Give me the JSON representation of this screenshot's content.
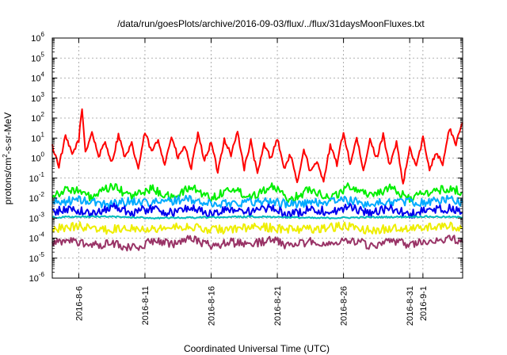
{
  "chart_data": {
    "type": "line",
    "title": "/data/run/goesPlots/archive/2016-09-03/flux/../flux/31daysMoonFluxes.txt",
    "xlabel": "Coordinated Universal Time (UTC)",
    "ylabel_parts": [
      "protons/cm",
      "2",
      "-s-sr-MeV"
    ],
    "yscale": "log",
    "ylim": [
      1e-06,
      1000000.0
    ],
    "xlim": [
      "2016-08-04T00:00",
      "2016-09-04T00:00"
    ],
    "grid": true,
    "legend": "none",
    "x_tick_labels": [
      "2016-8-6",
      "2016-8-11",
      "2016-8-16",
      "2016-8-21",
      "2016-8-26",
      "2016-8-31",
      "2016-9-1"
    ],
    "x_tick_dates": [
      "2016-08-06",
      "2016-08-11",
      "2016-08-16",
      "2016-08-21",
      "2016-08-26",
      "2016-08-31",
      "2016-09-01"
    ],
    "y_tick_labels": [
      {
        "base": "10",
        "exp": "6"
      },
      {
        "base": "10",
        "exp": "5"
      },
      {
        "base": "10",
        "exp": "4"
      },
      {
        "base": "10",
        "exp": "3"
      },
      {
        "base": "10",
        "exp": "2"
      },
      {
        "base": "10",
        "exp": "1"
      },
      {
        "base": "10",
        "exp": "0"
      },
      {
        "base": "10",
        "exp": "-1"
      },
      {
        "base": "10",
        "exp": "-2"
      },
      {
        "base": "10",
        "exp": "-3"
      },
      {
        "base": "10",
        "exp": "-4"
      },
      {
        "base": "10",
        "exp": "-5"
      },
      {
        "base": "10",
        "exp": "-6"
      }
    ],
    "y_tick_values": [
      1000000.0,
      100000.0,
      10000.0,
      1000.0,
      100.0,
      10.0,
      1,
      0.1,
      0.01,
      0.001,
      0.0001,
      1e-05,
      1e-06
    ],
    "series": [
      {
        "color": "#ff0000",
        "x": [
          "2016-08-04T00:00",
          "2016-08-04T12:00",
          "2016-08-05T00:00",
          "2016-08-05T12:00",
          "2016-08-06T00:00",
          "2016-08-06T06:00",
          "2016-08-06T12:00",
          "2016-08-07T00:00",
          "2016-08-07T12:00",
          "2016-08-08T00:00",
          "2016-08-08T12:00",
          "2016-08-09T00:00",
          "2016-08-09T12:00",
          "2016-08-10T00:00",
          "2016-08-10T12:00",
          "2016-08-11T00:00",
          "2016-08-11T12:00",
          "2016-08-12T00:00",
          "2016-08-12T12:00",
          "2016-08-13T00:00",
          "2016-08-13T12:00",
          "2016-08-14T00:00",
          "2016-08-14T12:00",
          "2016-08-15T00:00",
          "2016-08-15T12:00",
          "2016-08-16T00:00",
          "2016-08-16T12:00",
          "2016-08-17T00:00",
          "2016-08-17T12:00",
          "2016-08-18T00:00",
          "2016-08-18T12:00",
          "2016-08-19T00:00",
          "2016-08-19T12:00",
          "2016-08-20T00:00",
          "2016-08-20T12:00",
          "2016-08-21T00:00",
          "2016-08-21T12:00",
          "2016-08-22T00:00",
          "2016-08-22T12:00",
          "2016-08-23T00:00",
          "2016-08-23T12:00",
          "2016-08-24T00:00",
          "2016-08-24T12:00",
          "2016-08-25T00:00",
          "2016-08-25T12:00",
          "2016-08-26T00:00",
          "2016-08-26T12:00",
          "2016-08-27T00:00",
          "2016-08-27T12:00",
          "2016-08-28T00:00",
          "2016-08-28T12:00",
          "2016-08-29T00:00",
          "2016-08-29T12:00",
          "2016-08-30T00:00",
          "2016-08-30T12:00",
          "2016-08-31T00:00",
          "2016-08-31T12:00",
          "2016-09-01T00:00",
          "2016-09-01T12:00",
          "2016-09-02T00:00",
          "2016-09-02T12:00",
          "2016-09-03T00:00",
          "2016-09-03T12:00",
          "2016-09-04T00:00"
        ],
        "y": [
          4,
          0.4,
          12,
          1.5,
          8,
          300,
          2,
          20,
          1.2,
          6,
          0.6,
          15,
          1,
          5,
          0.3,
          20,
          2,
          8,
          0.5,
          12,
          1,
          4,
          0.3,
          15,
          0.8,
          6,
          0.2,
          9,
          1.5,
          20,
          0.3,
          7,
          0.15,
          5,
          1,
          10,
          0.3,
          1.5,
          0.05,
          3,
          0.2,
          0.6,
          0.08,
          4,
          0.5,
          20,
          0.5,
          10,
          0.2,
          8,
          1,
          15,
          0.4,
          6,
          0.05,
          3,
          0.4,
          10,
          0.3,
          2,
          0.5,
          30,
          5,
          60
        ]
      },
      {
        "color": "#00ee00",
        "x": [
          "2016-08-04T00:00",
          "2016-08-05T12:00",
          "2016-08-07T00:00",
          "2016-08-08T12:00",
          "2016-08-10T00:00",
          "2016-08-11T12:00",
          "2016-08-13T00:00",
          "2016-08-14T12:00",
          "2016-08-16T00:00",
          "2016-08-17T12:00",
          "2016-08-19T00:00",
          "2016-08-20T12:00",
          "2016-08-22T00:00",
          "2016-08-23T12:00",
          "2016-08-25T00:00",
          "2016-08-26T12:00",
          "2016-08-28T00:00",
          "2016-08-29T12:00",
          "2016-08-31T00:00",
          "2016-09-01T12:00",
          "2016-09-03T00:00",
          "2016-09-04T00:00"
        ],
        "y": [
          0.015,
          0.03,
          0.01,
          0.04,
          0.012,
          0.03,
          0.01,
          0.035,
          0.01,
          0.03,
          0.012,
          0.04,
          0.008,
          0.03,
          0.01,
          0.04,
          0.015,
          0.03,
          0.01,
          0.02,
          0.03,
          0.02
        ]
      },
      {
        "color": "#00aaff",
        "x": [
          "2016-08-04T00:00",
          "2016-08-06T00:00",
          "2016-08-08T00:00",
          "2016-08-10T00:00",
          "2016-08-12T00:00",
          "2016-08-14T00:00",
          "2016-08-16T00:00",
          "2016-08-18T00:00",
          "2016-08-20T00:00",
          "2016-08-22T00:00",
          "2016-08-24T00:00",
          "2016-08-26T00:00",
          "2016-08-28T00:00",
          "2016-08-30T00:00",
          "2016-09-01T00:00",
          "2016-09-03T00:00",
          "2016-09-04T00:00"
        ],
        "y": [
          0.006,
          0.008,
          0.005,
          0.007,
          0.006,
          0.009,
          0.005,
          0.006,
          0.007,
          0.005,
          0.006,
          0.008,
          0.005,
          0.007,
          0.006,
          0.009,
          0.006
        ]
      },
      {
        "color": "#0000ee",
        "x": [
          "2016-08-04T00:00",
          "2016-08-05T12:00",
          "2016-08-07T00:00",
          "2016-08-08T12:00",
          "2016-08-10T00:00",
          "2016-08-11T12:00",
          "2016-08-13T00:00",
          "2016-08-14T12:00",
          "2016-08-16T00:00",
          "2016-08-17T12:00",
          "2016-08-19T00:00",
          "2016-08-20T12:00",
          "2016-08-22T00:00",
          "2016-08-23T12:00",
          "2016-08-25T00:00",
          "2016-08-26T12:00",
          "2016-08-28T00:00",
          "2016-08-29T12:00",
          "2016-08-31T00:00",
          "2016-09-01T12:00",
          "2016-09-03T00:00",
          "2016-09-04T00:00"
        ],
        "y": [
          0.002,
          0.003,
          0.0015,
          0.004,
          0.002,
          0.003,
          0.0018,
          0.0035,
          0.0015,
          0.003,
          0.002,
          0.0032,
          0.0014,
          0.003,
          0.002,
          0.0035,
          0.0018,
          0.003,
          0.0015,
          0.0025,
          0.003,
          0.002
        ]
      },
      {
        "color": "#00bbbb",
        "x": [
          "2016-08-04T00:00",
          "2016-08-08T00:00",
          "2016-08-12T00:00",
          "2016-08-16T00:00",
          "2016-08-20T00:00",
          "2016-08-24T00:00",
          "2016-08-28T00:00",
          "2016-09-01T00:00",
          "2016-09-04T00:00"
        ],
        "y": [
          0.0011,
          0.0012,
          0.001,
          0.0011,
          0.0012,
          0.001,
          0.0011,
          0.0012,
          0.0011
        ]
      },
      {
        "color": "#eeee00",
        "x": [
          "2016-08-04T00:00",
          "2016-08-06T00:00",
          "2016-08-08T00:00",
          "2016-08-10T00:00",
          "2016-08-12T00:00",
          "2016-08-14T00:00",
          "2016-08-16T00:00",
          "2016-08-18T00:00",
          "2016-08-20T00:00",
          "2016-08-22T00:00",
          "2016-08-24T00:00",
          "2016-08-26T00:00",
          "2016-08-28T00:00",
          "2016-08-30T00:00",
          "2016-09-01T00:00",
          "2016-09-03T00:00",
          "2016-09-04T00:00"
        ],
        "y": [
          0.0003,
          0.0004,
          0.00025,
          0.00035,
          0.0003,
          0.0004,
          0.00025,
          0.0003,
          0.00035,
          0.00028,
          0.0003,
          0.0004,
          0.00025,
          0.0003,
          0.00035,
          0.0004,
          0.0003
        ]
      },
      {
        "color": "#993366",
        "x": [
          "2016-08-04T00:00",
          "2016-08-05T12:00",
          "2016-08-07T00:00",
          "2016-08-08T12:00",
          "2016-08-10T00:00",
          "2016-08-11T12:00",
          "2016-08-13T00:00",
          "2016-08-14T12:00",
          "2016-08-16T00:00",
          "2016-08-17T12:00",
          "2016-08-19T00:00",
          "2016-08-20T12:00",
          "2016-08-22T00:00",
          "2016-08-23T12:00",
          "2016-08-25T00:00",
          "2016-08-26T12:00",
          "2016-08-28T00:00",
          "2016-08-29T12:00",
          "2016-08-31T00:00",
          "2016-09-01T12:00",
          "2016-09-03T00:00",
          "2016-09-04T00:00"
        ],
        "y": [
          5e-05,
          8e-05,
          4e-05,
          6e-05,
          3e-05,
          7e-05,
          5e-05,
          9e-05,
          4e-05,
          6e-05,
          5e-05,
          8e-05,
          4e-05,
          7e-05,
          5e-05,
          9e-05,
          4e-05,
          6e-05,
          5e-05,
          7e-05,
          0.0001,
          6e-05
        ]
      }
    ]
  }
}
